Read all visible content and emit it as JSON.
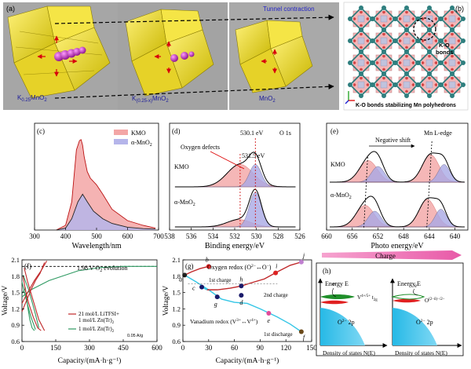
{
  "figure": {
    "panel_labels": [
      "(a)",
      "(b)",
      "(c)",
      "(d)",
      "(e)",
      "(f)",
      "(g)",
      "(h)"
    ]
  },
  "panel_a": {
    "structures": [
      "K0.25MnO2",
      "K(0.25-x)MnO2",
      "MnO2"
    ],
    "arrow_text": "Tunnel contraction"
  },
  "panel_b": {
    "label_bonds": "K-O bonds",
    "caption": "K-O bonds stabilizing Mn polyhedrons"
  },
  "panel_h": {
    "title": "Charge",
    "left": {
      "axis_y": "Energy E",
      "axis_x": "Density of states N(E)",
      "band_upper": "V4+/5+ t2g",
      "band_lower": "O2- 2p",
      "electron": "e"
    },
    "right": {
      "axis_y": "Energy E",
      "axis_x": "Density of states N(E)",
      "band_upper": "O(2-δ)-/2-",
      "band_lower": "O2- 2p",
      "electron": "e"
    }
  },
  "chart_data": [
    {
      "id": "c",
      "type": "area",
      "xlabel": "Wavelength/nm",
      "ylabel": "",
      "xlim": [
        300,
        700
      ],
      "xticks": [
        300,
        400,
        500,
        600,
        700
      ],
      "legend": [
        "KMO",
        "α-MnO2"
      ],
      "legend_position": "top-right",
      "series": [
        {
          "name": "KMO",
          "color": "#f08c8c",
          "x": [
            370,
            400,
            420,
            435,
            445,
            450,
            455,
            460,
            470,
            480,
            500,
            520,
            550,
            600,
            650,
            690
          ],
          "y": [
            0.0,
            0.05,
            0.3,
            0.85,
            0.95,
            0.96,
            0.9,
            0.78,
            0.62,
            0.55,
            0.48,
            0.38,
            0.22,
            0.1,
            0.05,
            0.02
          ]
        },
        {
          "name": "α-MnO2",
          "color": "#9a9ae0",
          "x": [
            370,
            400,
            420,
            440,
            455,
            470,
            490,
            520,
            550,
            600,
            650,
            690
          ],
          "y": [
            0.0,
            0.02,
            0.12,
            0.3,
            0.38,
            0.3,
            0.2,
            0.12,
            0.07,
            0.03,
            0.015,
            0.01
          ]
        }
      ]
    },
    {
      "id": "d",
      "type": "line",
      "xlabel": "Binding energy/eV",
      "title": "O 1s",
      "xlim": [
        538,
        526
      ],
      "xticks": [
        538,
        536,
        534,
        532,
        530,
        528,
        526
      ],
      "annotations": [
        "530.1 eV",
        "531.5 eV",
        "Oxygen defects"
      ],
      "series_labels": [
        "KMO",
        "α-MnO2"
      ]
    },
    {
      "id": "e",
      "type": "line",
      "xlabel": "Photo energy/eV",
      "xlim": [
        660,
        638
      ],
      "xticks": [
        660,
        656,
        652,
        648,
        644,
        640
      ],
      "annotations": [
        "Negative shift",
        "Mn L-edge"
      ],
      "series_labels": [
        "KMO",
        "α-MnO2"
      ]
    },
    {
      "id": "f",
      "type": "line",
      "xlabel": "Capacity/(mA·h·g⁻¹)",
      "ylabel": "Voltage/V",
      "xlim": [
        0,
        600
      ],
      "ylim": [
        0.6,
        2.1
      ],
      "xticks": [
        0,
        150,
        300,
        450,
        600
      ],
      "yticks": [
        0.6,
        0.9,
        1.2,
        1.5,
        1.8,
        2.1
      ],
      "annotations": [
        "1.98 V  O2 evolution",
        "0.05 A/g"
      ],
      "series": [
        {
          "name": "21 mol/L LiTFSI+ 1 mol/L Zn(Tr)2",
          "color": "#c0282a"
        },
        {
          "name": "1 mol/L Zn(Tr)2",
          "color": "#2e9a62"
        }
      ]
    },
    {
      "id": "g",
      "type": "line",
      "xlabel": "Capacity/(mA·h·g⁻¹)",
      "ylabel": "Voltage/V",
      "xlim": [
        0,
        150
      ],
      "ylim": [
        0.6,
        2.1
      ],
      "xticks": [
        0,
        30,
        60,
        90,
        120,
        150
      ],
      "yticks": [
        0.6,
        0.9,
        1.2,
        1.5,
        1.8,
        2.1
      ],
      "annotations": [
        "Oxygen redox (O2-↔O-)",
        "Vanadium redox (V3+↔V4+)",
        "1st charge",
        "2nd charge",
        "1st discharge"
      ],
      "points": [
        "a",
        "b",
        "c",
        "d",
        "e",
        "f",
        "g",
        "h",
        "i",
        "j"
      ]
    }
  ]
}
